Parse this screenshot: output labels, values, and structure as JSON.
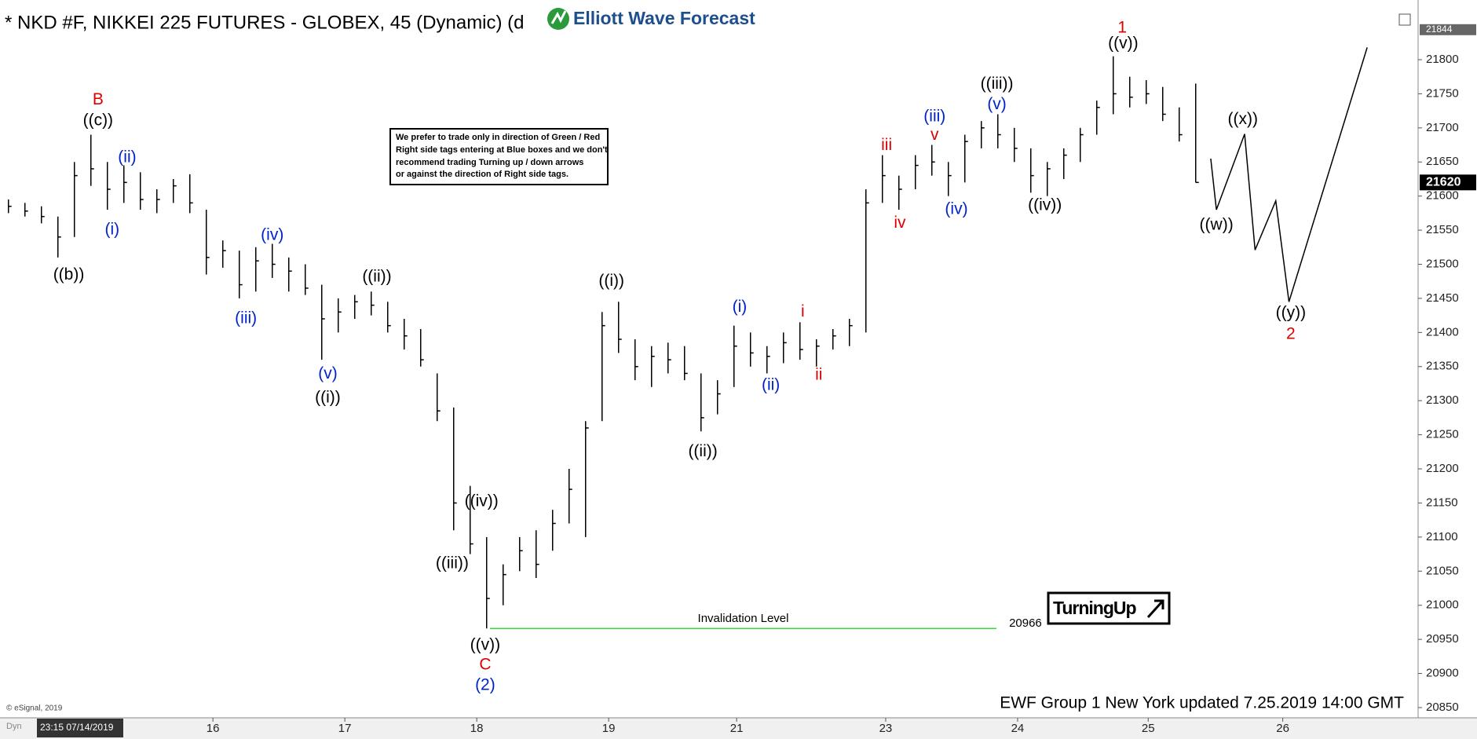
{
  "chart_data": {
    "type": "ohlc",
    "title": "* NKD #F, NIKKEI 225 FUTURES - GLOBEX, 45 (Dynamic) (d",
    "logo": "Elliott Wave Forecast",
    "notice": [
      "We prefer to trade only in direction of Green / Red",
      "Right side tags entering at Blue boxes and we don't",
      "recommend trading Turning up / down arrows",
      "or against the direction of Right side tags."
    ],
    "footer": "EWF Group 1 New York updated 7.25.2019 14:00 GMT",
    "copyright": "© eSignal, 2019",
    "dyn": "Dyn",
    "start_stamp": "23:15 07/14/2019",
    "badge": "TurningUp",
    "color": "#000000",
    "xlim": [
      14.386,
      25.136
    ],
    "ylim": [
      20835,
      21876
    ],
    "xticks": [
      16,
      17,
      18,
      19,
      {
        "value": 19.97,
        "label": "21"
      },
      {
        "value": 21.1,
        "label": "23"
      },
      {
        "value": 22.1,
        "label": "24"
      },
      {
        "value": 23.09,
        "label": "25"
      },
      {
        "value": 24.11,
        "label": "26"
      }
    ],
    "yticks": [
      20850,
      20900,
      20950,
      21000,
      21050,
      21100,
      21150,
      21200,
      21250,
      21300,
      21350,
      21400,
      21450,
      21500,
      21550,
      21600,
      21650,
      21700,
      21750,
      21800
    ],
    "grid": false,
    "x": [
      14.45,
      14.575,
      14.7,
      14.825,
      14.95,
      15.075,
      15.2,
      15.325,
      15.45,
      15.575,
      15.7,
      15.825,
      15.95,
      16.075,
      16.2,
      16.325,
      16.45,
      16.575,
      16.7,
      16.825,
      16.95,
      17.075,
      17.2,
      17.325,
      17.45,
      17.575,
      17.7,
      17.825,
      17.95,
      18.075,
      18.2,
      18.325,
      18.45,
      18.575,
      18.7,
      18.825,
      18.95,
      19.075,
      19.2,
      19.325,
      19.45,
      19.575,
      19.7,
      19.825,
      19.95,
      20.075,
      20.2,
      20.325,
      20.45,
      20.575,
      20.7,
      20.825,
      20.95,
      21.075,
      21.2,
      21.325,
      21.45,
      21.575,
      21.7,
      21.825,
      21.95,
      22.075,
      22.2,
      22.325,
      22.45,
      22.575,
      22.7,
      22.825,
      22.95,
      23.075,
      23.2,
      23.325,
      23.45
    ],
    "high": [
      21595,
      21590,
      21585,
      21570,
      21650,
      21690,
      21650,
      21645,
      21635,
      21610,
      21625,
      21632,
      21580,
      21535,
      21520,
      21525,
      21530,
      21510,
      21500,
      21470,
      21450,
      21455,
      21460,
      21445,
      21420,
      21405,
      21340,
      21290,
      21175,
      21100,
      21060,
      21100,
      21110,
      21140,
      21200,
      21270,
      21430,
      21445,
      21390,
      21380,
      21385,
      21380,
      21340,
      21330,
      21410,
      21400,
      21380,
      21400,
      21415,
      21390,
      21405,
      21420,
      21610,
      21660,
      21630,
      21660,
      21675,
      21650,
      21690,
      21710,
      21720,
      21700,
      21670,
      21650,
      21670,
      21700,
      21740,
      21805,
      21775,
      21770,
      21760,
      21730,
      21765
    ],
    "low": [
      21575,
      21570,
      21560,
      21510,
      21540,
      21615,
      21580,
      21590,
      21580,
      21575,
      21590,
      21575,
      21485,
      21495,
      21450,
      21460,
      21480,
      21460,
      21455,
      21360,
      21400,
      21420,
      21425,
      21400,
      21375,
      21350,
      21270,
      21110,
      21075,
      20966,
      21000,
      21050,
      21040,
      21080,
      21120,
      21100,
      21270,
      21370,
      21330,
      21320,
      21340,
      21330,
      21255,
      21280,
      21320,
      21350,
      21340,
      21355,
      21360,
      21350,
      21375,
      21380,
      21400,
      21590,
      21580,
      21610,
      21630,
      21600,
      21620,
      21670,
      21670,
      21650,
      21605,
      21600,
      21625,
      21650,
      21690,
      21720,
      21730,
      21735,
      21710,
      21680,
      21620
    ],
    "close": [
      21585,
      21578,
      21570,
      21540,
      21630,
      21640,
      21610,
      21620,
      21595,
      21595,
      21615,
      21590,
      21510,
      21520,
      21470,
      21505,
      21500,
      21490,
      21465,
      21420,
      21430,
      21445,
      21440,
      21410,
      21395,
      21360,
      21285,
      21150,
      21090,
      21010,
      21045,
      21080,
      21060,
      21120,
      21170,
      21260,
      21410,
      21390,
      21350,
      21365,
      21360,
      21340,
      21275,
      21310,
      21380,
      21370,
      21365,
      21385,
      21375,
      21380,
      21395,
      21410,
      21590,
      21630,
      21610,
      21645,
      21650,
      21630,
      21680,
      21700,
      21690,
      21670,
      21630,
      21640,
      21660,
      21690,
      21730,
      21750,
      21745,
      21750,
      21720,
      21690,
      21620
    ],
    "projection": {
      "color": "#000000",
      "x": [
        23.564,
        23.607,
        23.821,
        23.9,
        24.057,
        24.157,
        24.75
      ],
      "values": [
        21655,
        21580,
        21691,
        21521,
        21593,
        21445,
        21818
      ]
    },
    "invalidation": {
      "label": "Invalidation Level",
      "value": 20966,
      "x": [
        18.1,
        21.94
      ],
      "color": "#33dd33"
    },
    "price_tags": [
      {
        "value": 21844,
        "color": "#666666"
      },
      {
        "value": 21620,
        "color": "#000000"
      }
    ],
    "annotations": [
      {
        "text": "B",
        "x": 15.129,
        "y": 21741,
        "color": "#dd0000"
      },
      {
        "text": "((c))",
        "x": 15.129,
        "y": 21710,
        "color": "#000000"
      },
      {
        "text": "(ii)",
        "x": 15.35,
        "y": 21656,
        "color": "#0022cc"
      },
      {
        "text": "(i)",
        "x": 15.236,
        "y": 21550,
        "color": "#0022cc"
      },
      {
        "text": "((b))",
        "x": 14.907,
        "y": 21484,
        "color": "#000000"
      },
      {
        "text": "(iv)",
        "x": 16.45,
        "y": 21542,
        "color": "#0022cc"
      },
      {
        "text": "(iii)",
        "x": 16.25,
        "y": 21420,
        "color": "#0022cc"
      },
      {
        "text": "((ii))",
        "x": 17.243,
        "y": 21481,
        "color": "#000000"
      },
      {
        "text": "(v)",
        "x": 16.871,
        "y": 21339,
        "color": "#0022cc"
      },
      {
        "text": "((i))",
        "x": 16.871,
        "y": 21304,
        "color": "#000000"
      },
      {
        "text": "((i))",
        "x": 19.021,
        "y": 21475,
        "color": "#000000"
      },
      {
        "text": "((iv))",
        "x": 18.036,
        "y": 21152,
        "color": "#000000"
      },
      {
        "text": "((iii))",
        "x": 17.814,
        "y": 21061,
        "color": "#000000"
      },
      {
        "text": "((v))",
        "x": 18.064,
        "y": 20941,
        "color": "#000000"
      },
      {
        "text": "C",
        "x": 18.064,
        "y": 20912,
        "color": "#dd0000"
      },
      {
        "text": "(2)",
        "x": 18.064,
        "y": 20882,
        "color": "#0022cc"
      },
      {
        "text": "((ii))",
        "x": 19.714,
        "y": 21225,
        "color": "#000000"
      },
      {
        "text": "(i)",
        "x": 19.993,
        "y": 21437,
        "color": "#0022cc"
      },
      {
        "text": "(ii)",
        "x": 20.229,
        "y": 21322,
        "color": "#0022cc"
      },
      {
        "text": "i",
        "x": 20.471,
        "y": 21430,
        "color": "#dd0000"
      },
      {
        "text": "ii",
        "x": 20.593,
        "y": 21337,
        "color": "#dd0000"
      },
      {
        "text": "iii",
        "x": 21.107,
        "y": 21674,
        "color": "#dd0000"
      },
      {
        "text": "iv",
        "x": 21.207,
        "y": 21560,
        "color": "#dd0000"
      },
      {
        "text": "(iii)",
        "x": 21.471,
        "y": 21716,
        "color": "#0022cc"
      },
      {
        "text": "v",
        "x": 21.471,
        "y": 21689,
        "color": "#dd0000"
      },
      {
        "text": "(iv)",
        "x": 21.636,
        "y": 21580,
        "color": "#0022cc"
      },
      {
        "text": "((iii))",
        "x": 21.943,
        "y": 21764,
        "color": "#000000"
      },
      {
        "text": "(v)",
        "x": 21.943,
        "y": 21734,
        "color": "#0022cc"
      },
      {
        "text": "((iv))",
        "x": 22.307,
        "y": 21586,
        "color": "#000000"
      },
      {
        "text": "1",
        "x": 22.893,
        "y": 21846,
        "color": "#dd0000"
      },
      {
        "text": "((v))",
        "x": 22.9,
        "y": 21823,
        "color": "#000000"
      },
      {
        "text": "((x))",
        "x": 23.807,
        "y": 21712,
        "color": "#000000"
      },
      {
        "text": "((w))",
        "x": 23.607,
        "y": 21557,
        "color": "#000000"
      },
      {
        "text": "((y))",
        "x": 24.171,
        "y": 21428,
        "color": "#000000"
      },
      {
        "text": "2",
        "x": 24.171,
        "y": 21397,
        "color": "#dd0000"
      }
    ]
  }
}
